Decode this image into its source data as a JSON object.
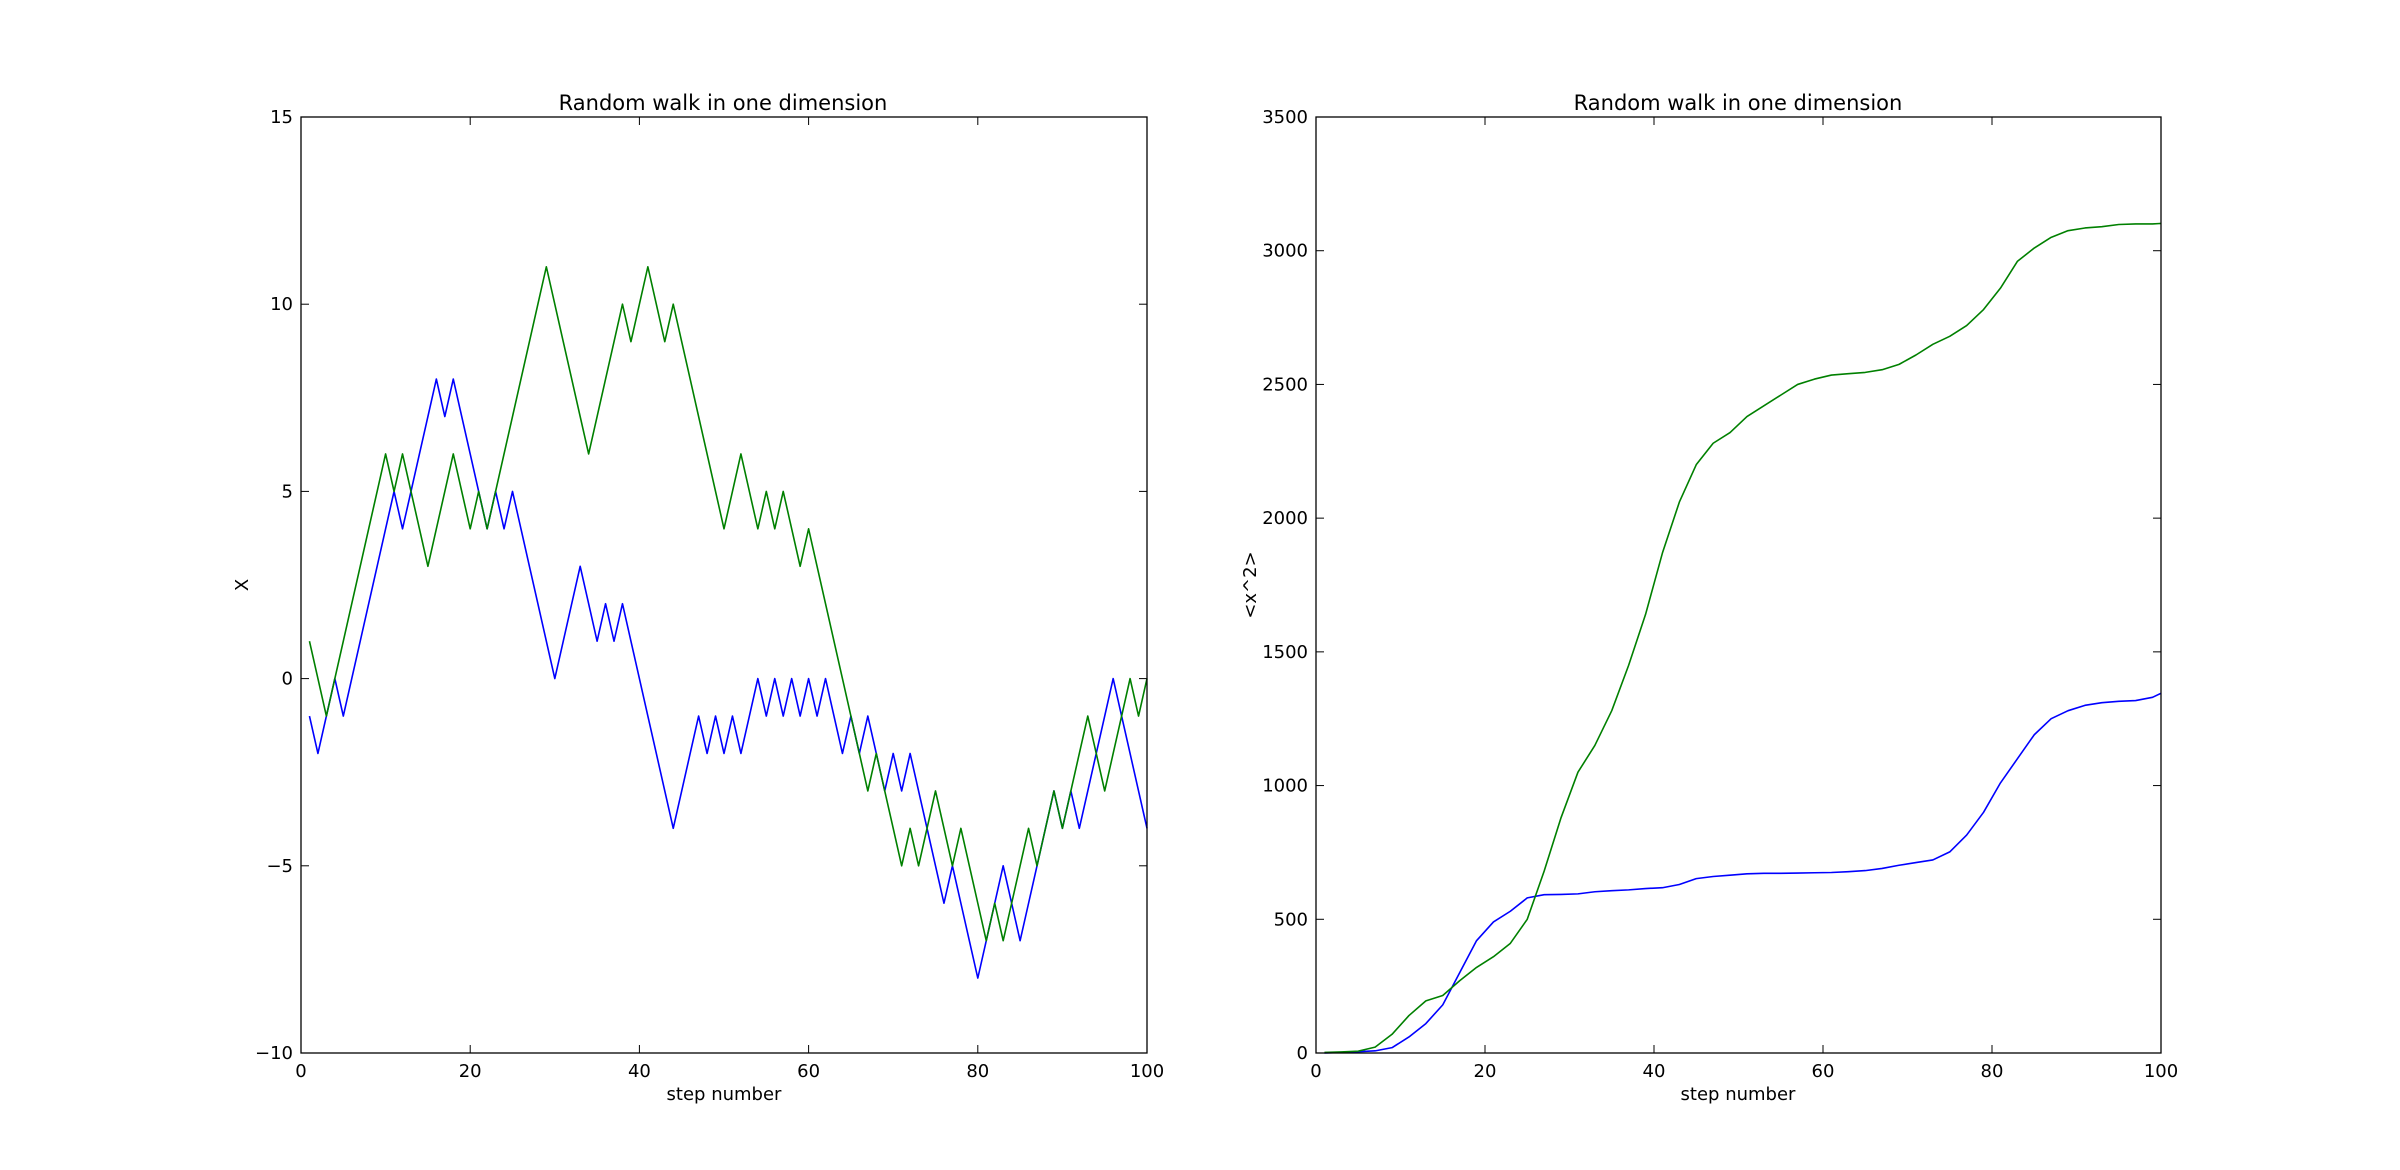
{
  "colors": {
    "series_1": "#0000ff",
    "series_2": "#008000",
    "axes": "#000000",
    "background": "#ffffff"
  },
  "chart_data": [
    {
      "type": "line",
      "title": "Random walk in one dimension",
      "xlabel": "step number",
      "ylabel": "X",
      "xlim": [
        0,
        100
      ],
      "ylim": [
        -10,
        15
      ],
      "xticks": [
        0,
        20,
        40,
        60,
        80,
        100
      ],
      "yticks": [
        -10,
        -5,
        0,
        5,
        10,
        15
      ],
      "grid": false,
      "x": [
        1,
        2,
        3,
        4,
        5,
        6,
        7,
        8,
        9,
        10,
        11,
        12,
        13,
        14,
        15,
        16,
        17,
        18,
        19,
        20,
        21,
        22,
        23,
        24,
        25,
        26,
        27,
        28,
        29,
        30,
        31,
        32,
        33,
        34,
        35,
        36,
        37,
        38,
        39,
        40,
        41,
        42,
        43,
        44,
        45,
        46,
        47,
        48,
        49,
        50,
        51,
        52,
        53,
        54,
        55,
        56,
        57,
        58,
        59,
        60,
        61,
        62,
        63,
        64,
        65,
        66,
        67,
        68,
        69,
        70,
        71,
        72,
        73,
        74,
        75,
        76,
        77,
        78,
        79,
        80,
        81,
        82,
        83,
        84,
        85,
        86,
        87,
        88,
        89,
        90,
        91,
        92,
        93,
        94,
        95,
        96,
        97,
        98,
        99,
        100
      ],
      "series": [
        {
          "color": "#0000ff",
          "values": [
            -1,
            -2,
            -1,
            0,
            -1,
            0,
            1,
            2,
            3,
            4,
            5,
            4,
            5,
            6,
            7,
            8,
            7,
            8,
            7,
            6,
            5,
            4,
            5,
            4,
            5,
            4,
            3,
            2,
            1,
            0,
            1,
            2,
            3,
            2,
            1,
            2,
            1,
            2,
            1,
            0,
            -1,
            -2,
            -3,
            -4,
            -3,
            -2,
            -1,
            -2,
            -1,
            -2,
            -1,
            -2,
            -1,
            0,
            -1,
            0,
            -1,
            0,
            -1,
            0,
            -1,
            0,
            -1,
            -2,
            -1,
            -2,
            -1,
            -2,
            -3,
            -2,
            -3,
            -2,
            -3,
            -4,
            -5,
            -6,
            -5,
            -6,
            -7,
            -8,
            -7,
            -6,
            -5,
            -6,
            -7,
            -6,
            -5,
            -4,
            -3,
            -4,
            -3,
            -4,
            -3,
            -2,
            -1,
            0,
            -1,
            -2,
            -3,
            -4
          ]
        },
        {
          "color": "#008000",
          "values": [
            1,
            0,
            -1,
            0,
            1,
            2,
            3,
            4,
            5,
            6,
            5,
            6,
            5,
            4,
            3,
            4,
            5,
            6,
            5,
            4,
            5,
            4,
            5,
            6,
            7,
            8,
            9,
            10,
            11,
            10,
            9,
            8,
            7,
            6,
            7,
            8,
            9,
            10,
            9,
            10,
            11,
            10,
            9,
            10,
            9,
            8,
            7,
            6,
            5,
            4,
            5,
            6,
            5,
            4,
            5,
            4,
            5,
            4,
            3,
            4,
            3,
            2,
            1,
            0,
            -1,
            -2,
            -3,
            -2,
            -3,
            -4,
            -5,
            -4,
            -5,
            -4,
            -3,
            -4,
            -5,
            -4,
            -5,
            -6,
            -7,
            -6,
            -7,
            -6,
            -5,
            -4,
            -5,
            -4,
            -3,
            -4,
            -3,
            -2,
            -1,
            -2,
            -3,
            -2,
            -1,
            0,
            -1,
            0
          ]
        }
      ]
    },
    {
      "type": "line",
      "title": "Random walk in one dimension",
      "xlabel": "step number",
      "ylabel": "<x^2>",
      "xlim": [
        0,
        100
      ],
      "ylim": [
        0,
        3500
      ],
      "xticks": [
        0,
        20,
        40,
        60,
        80,
        100
      ],
      "yticks": [
        0,
        500,
        1000,
        1500,
        2000,
        2500,
        3000,
        3500
      ],
      "grid": false,
      "x": [
        1,
        3,
        5,
        7,
        9,
        11,
        13,
        15,
        17,
        19,
        21,
        23,
        25,
        27,
        29,
        31,
        33,
        35,
        37,
        39,
        41,
        43,
        45,
        47,
        49,
        51,
        53,
        55,
        57,
        59,
        61,
        63,
        65,
        67,
        69,
        71,
        73,
        75,
        77,
        79,
        81,
        83,
        85,
        87,
        89,
        91,
        93,
        95,
        97,
        99,
        100
      ],
      "series": [
        {
          "color": "#0000ff",
          "values": [
            0,
            2,
            5,
            8,
            20,
            60,
            110,
            180,
            300,
            420,
            490,
            530,
            580,
            592,
            593,
            595,
            603,
            607,
            610,
            615,
            618,
            630,
            652,
            660,
            665,
            670,
            672,
            672,
            673,
            674,
            675,
            678,
            682,
            690,
            702,
            712,
            722,
            752,
            815,
            900,
            1010,
            1100,
            1190,
            1250,
            1280,
            1300,
            1310,
            1315,
            1318,
            1330,
            1345
          ]
        },
        {
          "color": "#008000",
          "values": [
            2,
            4,
            7,
            22,
            70,
            140,
            195,
            215,
            270,
            320,
            360,
            410,
            500,
            680,
            880,
            1050,
            1150,
            1280,
            1450,
            1640,
            1870,
            2060,
            2200,
            2280,
            2320,
            2380,
            2420,
            2460,
            2500,
            2520,
            2535,
            2540,
            2545,
            2555,
            2575,
            2610,
            2650,
            2680,
            2720,
            2780,
            2860,
            2960,
            3010,
            3050,
            3075,
            3085,
            3090,
            3098,
            3100,
            3100,
            3102
          ]
        }
      ]
    }
  ]
}
